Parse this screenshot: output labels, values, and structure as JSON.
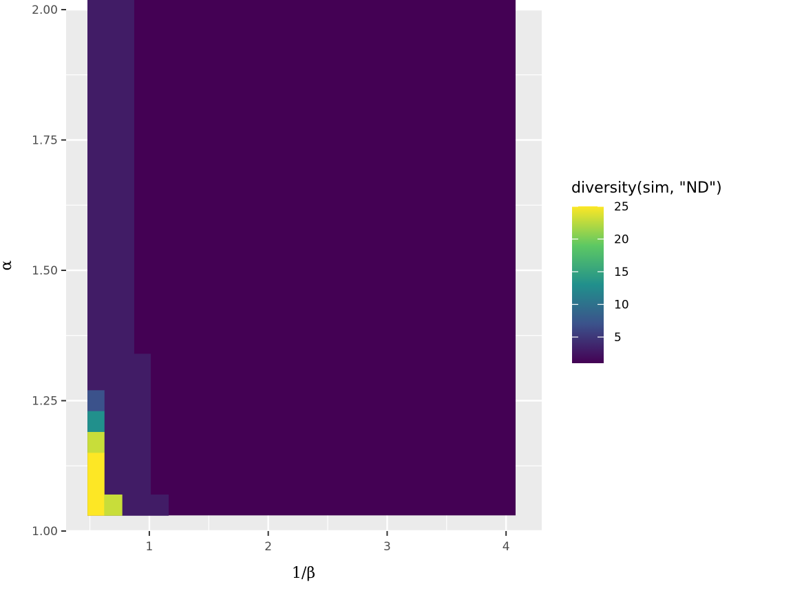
{
  "chart_data": {
    "type": "heatmap",
    "xlabel": "1/β",
    "ylabel": "α",
    "xlim": [
      0.3,
      4.3
    ],
    "ylim": [
      1.0,
      2.0
    ],
    "x_ticks": [
      1,
      2,
      3,
      4
    ],
    "x_tick_labels": [
      "1",
      "2",
      "3",
      "4"
    ],
    "y_ticks": [
      1.0,
      1.25,
      1.5,
      1.75,
      2.0
    ],
    "y_tick_labels": [
      "1.00",
      "1.25",
      "1.50",
      "1.75",
      "2.00"
    ],
    "grid": true,
    "panel_background": "#ebebeb",
    "grid_color": "#ffffff",
    "x_range": [
      0.48,
      4.08
    ],
    "y_range": [
      1.03,
      2.02
    ],
    "background_value": 1,
    "cells": [
      {
        "x0": 0.48,
        "x1": 0.87,
        "y0": 1.34,
        "y1": 2.02,
        "value": 3
      },
      {
        "x0": 0.48,
        "x1": 1.01,
        "y0": 1.07,
        "y1": 1.34,
        "value": 3
      },
      {
        "x0": 0.48,
        "x1": 1.16,
        "y0": 1.03,
        "y1": 1.07,
        "value": 3
      },
      {
        "x0": 0.48,
        "x1": 0.62,
        "y0": 1.23,
        "y1": 1.27,
        "value": 7
      },
      {
        "x0": 0.48,
        "x1": 0.62,
        "y0": 1.19,
        "y1": 1.23,
        "value": 13
      },
      {
        "x0": 0.48,
        "x1": 0.62,
        "y0": 1.15,
        "y1": 1.19,
        "value": 23
      },
      {
        "x0": 0.48,
        "x1": 0.62,
        "y0": 1.03,
        "y1": 1.15,
        "value": 25
      },
      {
        "x0": 0.62,
        "x1": 0.77,
        "y0": 1.03,
        "y1": 1.07,
        "value": 23
      }
    ],
    "legend": {
      "title": "diversity(sim, \"ND\")",
      "position": "right",
      "min": 1,
      "max": 25,
      "ticks": [
        5,
        10,
        15,
        20,
        25
      ],
      "tick_labels": [
        "5",
        "10",
        "15",
        "20",
        "25"
      ],
      "colormap": "viridis"
    },
    "colors": [
      "#440154",
      "#3b528b",
      "#21908c",
      "#5dc863",
      "#fde725"
    ]
  }
}
